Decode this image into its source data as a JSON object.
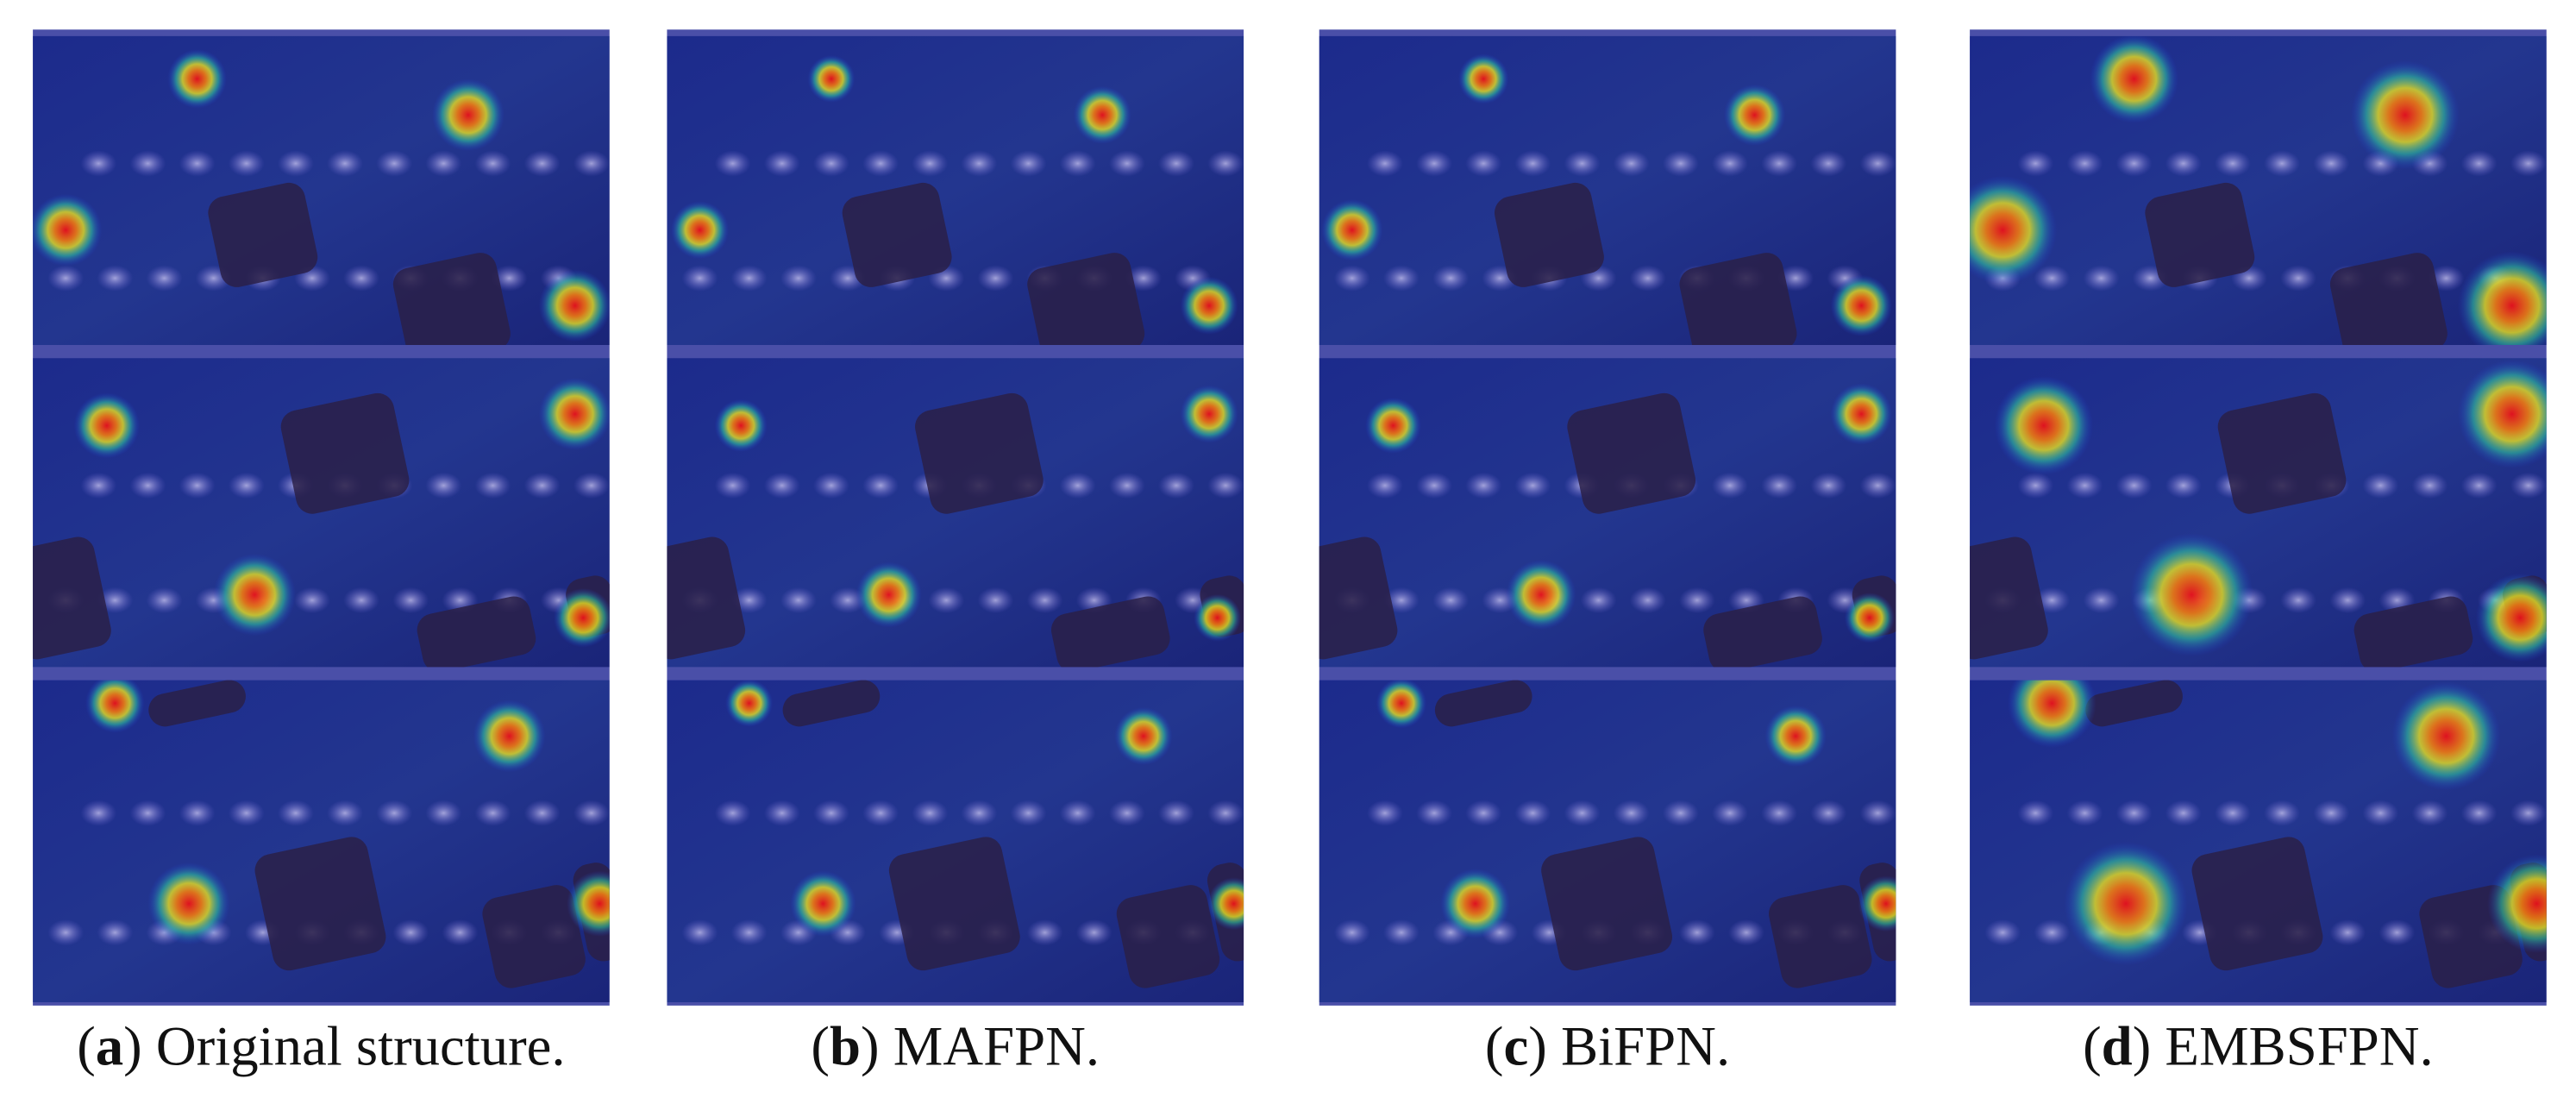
{
  "panels": [
    {
      "open": "(",
      "label": "a",
      "rest": ") Original structure."
    },
    {
      "open": "(",
      "label": "b",
      "rest": ") MAFPN."
    },
    {
      "open": "(",
      "label": "c",
      "rest": ") BiFPN."
    },
    {
      "open": "(",
      "label": "d",
      "rest": ") EMBSFPN."
    }
  ]
}
